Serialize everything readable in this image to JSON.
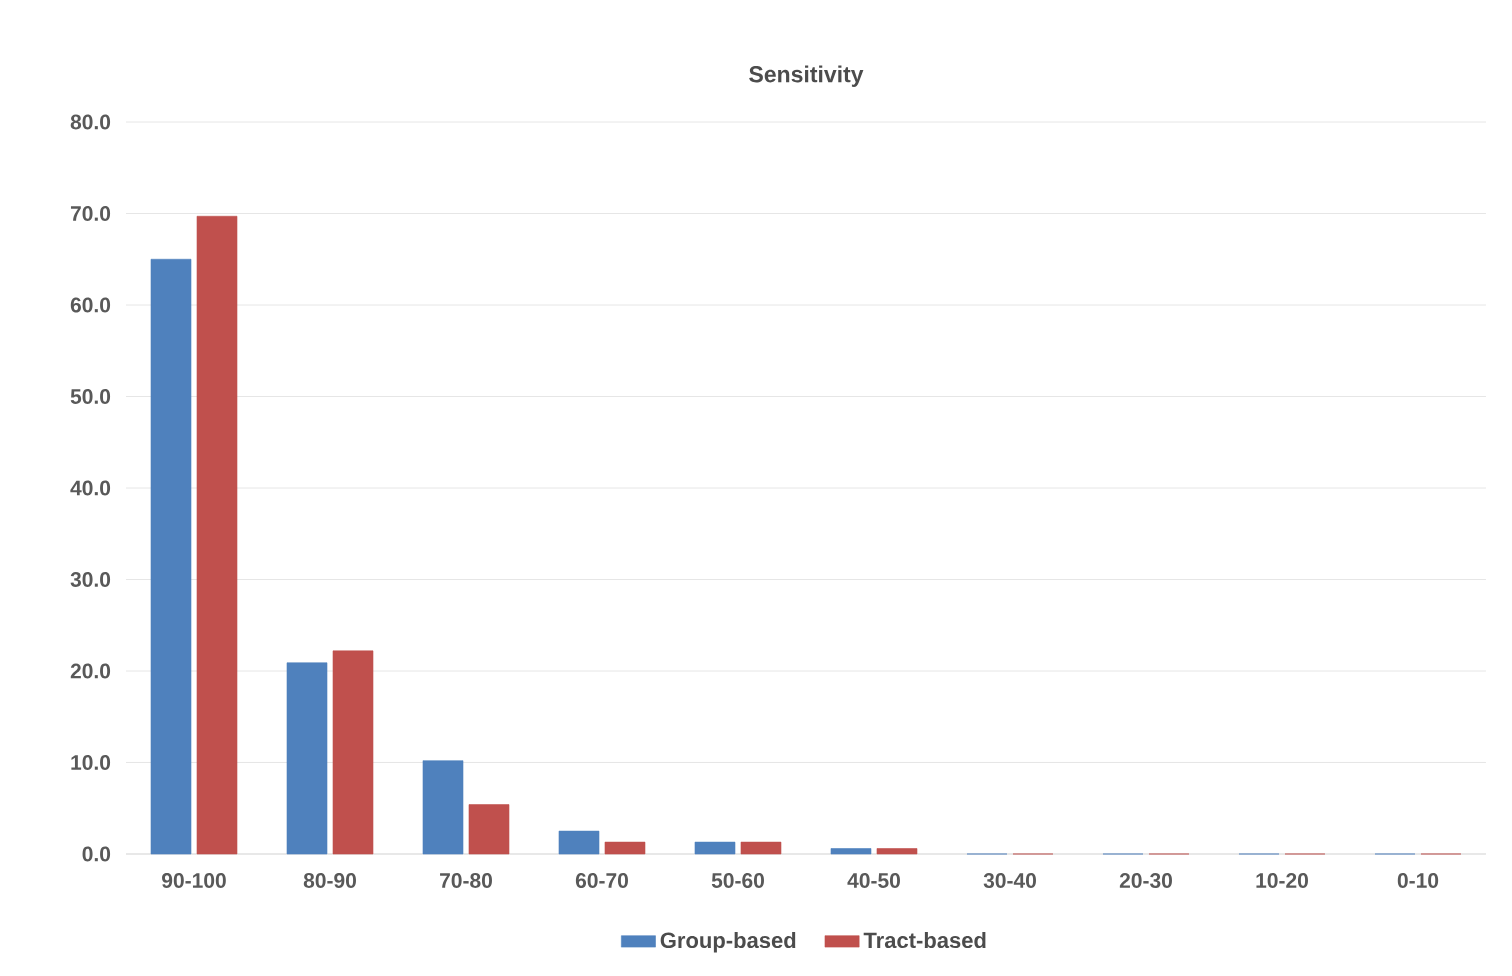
{
  "chart_data": {
    "type": "bar",
    "title": "Sensitivity",
    "categories": [
      "90-100",
      "80-90",
      "70-80",
      "60-70",
      "50-60",
      "40-50",
      "30-40",
      "20-30",
      "10-20",
      "0-10"
    ],
    "series": [
      {
        "name": "Group-based",
        "color": "#4f81bd",
        "values": [
          65.0,
          20.9,
          10.2,
          2.5,
          1.3,
          0.6,
          0,
          0,
          0,
          0
        ]
      },
      {
        "name": "Tract-based",
        "color": "#c0504d",
        "values": [
          69.7,
          22.2,
          5.4,
          1.3,
          1.3,
          0.6,
          0,
          0,
          0,
          0
        ]
      }
    ],
    "ylim": [
      0,
      80
    ],
    "yticks": [
      {
        "value": 0,
        "label": "0.0"
      },
      {
        "value": 10,
        "label": "10.0"
      },
      {
        "value": 20,
        "label": "20.0"
      },
      {
        "value": 30,
        "label": "30.0"
      },
      {
        "value": 40,
        "label": "40.0"
      },
      {
        "value": 50,
        "label": "50.0"
      },
      {
        "value": 60,
        "label": "60.0"
      },
      {
        "value": 70,
        "label": "70.0"
      },
      {
        "value": 80,
        "label": "80.0"
      }
    ],
    "grid": "y",
    "legend": "bottom"
  }
}
